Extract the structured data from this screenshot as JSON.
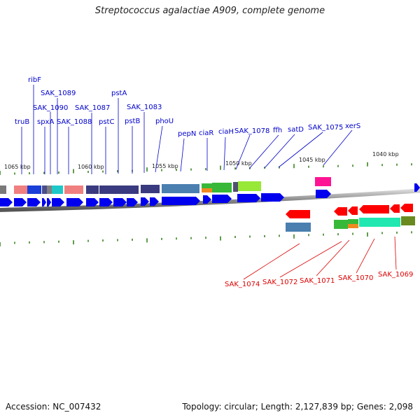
{
  "title": "Streptococcus agalactiae A909, complete genome",
  "footer": {
    "accession": "Accession: NC_007432",
    "topology": "Topology: circular; Length: 2,127,839 bp; Genes: 2,098"
  },
  "colors": {
    "forward_gene": "#0000ee",
    "reverse_gene": "#ff0000",
    "forward_label": "#0000cc",
    "reverse_label": "#dd0000",
    "tick": "#2a7a10",
    "backbone": "#888888"
  },
  "ruler": {
    "labels": [
      "1065 kbp",
      "1060 kbp",
      "1055 kbp",
      "1050 kbp",
      "1045 kbp",
      "1040 kbp"
    ]
  },
  "forward_labels": [
    "truB",
    "ribF",
    "SAK_1089",
    "SAK_1090",
    "spxA",
    "SAK_1088",
    "SAK_1087",
    "pstC",
    "pstA",
    "pstB",
    "SAK_1083",
    "phoU",
    "pepN",
    "ciaR",
    "ciaH",
    "SAK_1078",
    "ffh",
    "satD",
    "SAK_1075",
    "xerS"
  ],
  "reverse_labels": [
    "SAK_1074",
    "SAK_1072",
    "SAK_1071",
    "SAK_1070",
    "SAK_1069"
  ]
}
